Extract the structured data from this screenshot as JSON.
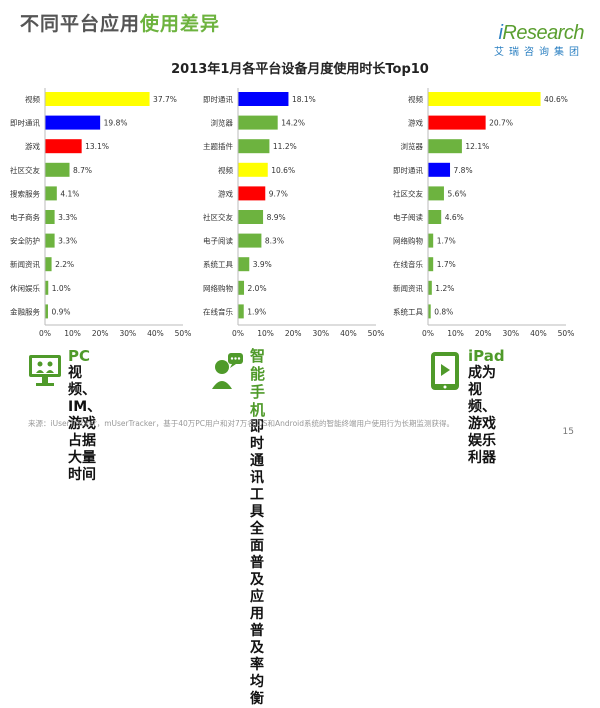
{
  "header": {
    "title_part1": "不同平台应用",
    "title_part2": "使用差异"
  },
  "logo": {
    "main_i": "i",
    "main_rest": "Research",
    "sub": "艾瑞咨询集团"
  },
  "chart_title": "2013年1月各平台设备月度使用时长Top10",
  "colors": {
    "yellow": "#ffff00",
    "red": "#ff0000",
    "blue": "#0000ff",
    "green": "#6db33f"
  },
  "chart_data": [
    {
      "type": "bar",
      "orientation": "horizontal",
      "categories": [
        "视频",
        "即时通讯",
        "游戏",
        "社区交友",
        "搜索服务",
        "电子商务",
        "安全防护",
        "新闻资讯",
        "休闲娱乐",
        "金融服务"
      ],
      "values": [
        37.7,
        19.8,
        13.1,
        8.7,
        4.1,
        3.3,
        3.3,
        2.2,
        1.0,
        0.9
      ],
      "value_labels": [
        "37.7%",
        "19.8%",
        "13.1%",
        "8.7%",
        "4.1%",
        "3.3%",
        "3.3%",
        "2.2%",
        "1.0%",
        "0.9%"
      ],
      "bar_colors": [
        "#ffff00",
        "#0000ff",
        "#ff0000",
        "#6db33f",
        "#6db33f",
        "#6db33f",
        "#6db33f",
        "#6db33f",
        "#6db33f",
        "#6db33f"
      ],
      "xlim": [
        0,
        50
      ],
      "xticks": [
        "0%",
        "10%",
        "20%",
        "30%",
        "40%",
        "50%"
      ]
    },
    {
      "type": "bar",
      "orientation": "horizontal",
      "categories": [
        "即时通讯",
        "浏览器",
        "主题插件",
        "视频",
        "游戏",
        "社区交友",
        "电子阅读",
        "系统工具",
        "网络购物",
        "在线音乐"
      ],
      "values": [
        18.1,
        14.2,
        11.2,
        10.6,
        9.7,
        8.9,
        8.3,
        3.9,
        2.0,
        1.9
      ],
      "value_labels": [
        "18.1%",
        "14.2%",
        "11.2%",
        "10.6%",
        "9.7%",
        "8.9%",
        "8.3%",
        "3.9%",
        "2.0%",
        "1.9%"
      ],
      "bar_colors": [
        "#0000ff",
        "#6db33f",
        "#6db33f",
        "#ffff00",
        "#ff0000",
        "#6db33f",
        "#6db33f",
        "#6db33f",
        "#6db33f",
        "#6db33f"
      ],
      "xlim": [
        0,
        50
      ],
      "xticks": [
        "0%",
        "10%",
        "20%",
        "30%",
        "40%",
        "50%"
      ]
    },
    {
      "type": "bar",
      "orientation": "horizontal",
      "categories": [
        "视频",
        "游戏",
        "浏览器",
        "即时通讯",
        "社区交友",
        "电子阅读",
        "网络购物",
        "在线音乐",
        "新闻资讯",
        "系统工具"
      ],
      "values": [
        40.6,
        20.7,
        12.1,
        7.8,
        5.6,
        4.6,
        1.7,
        1.7,
        1.2,
        0.8
      ],
      "value_labels": [
        "40.6%",
        "20.7%",
        "12.1%",
        "7.8%",
        "5.6%",
        "4.6%",
        "1.7%",
        "1.7%",
        "1.2%",
        "0.8%"
      ],
      "bar_colors": [
        "#ffff00",
        "#ff0000",
        "#6db33f",
        "#0000ff",
        "#6db33f",
        "#6db33f",
        "#6db33f",
        "#6db33f",
        "#6db33f",
        "#6db33f"
      ],
      "xlim": [
        0,
        50
      ],
      "xticks": [
        "0%",
        "10%",
        "20%",
        "30%",
        "40%",
        "50%"
      ]
    }
  ],
  "summaries": [
    {
      "title": "PC",
      "lines": [
        "视频、IM、游戏",
        "占据大量时间"
      ],
      "icon": "monitor-users-icon"
    },
    {
      "title": "智能手机",
      "lines": [
        "即时通讯工具全面普及",
        "应用普及率均衡"
      ],
      "icon": "phone-chat-icon"
    },
    {
      "title": "iPad",
      "lines": [
        "成为视频、游戏",
        "娱乐利器"
      ],
      "icon": "tablet-play-icon"
    }
  ],
  "source": "来源：iUserTracker，mUserTracker，基于40万PC用户和对7万名iOS和Android系统的智能终端用户使用行为长期监测获得。",
  "page_number": "15"
}
